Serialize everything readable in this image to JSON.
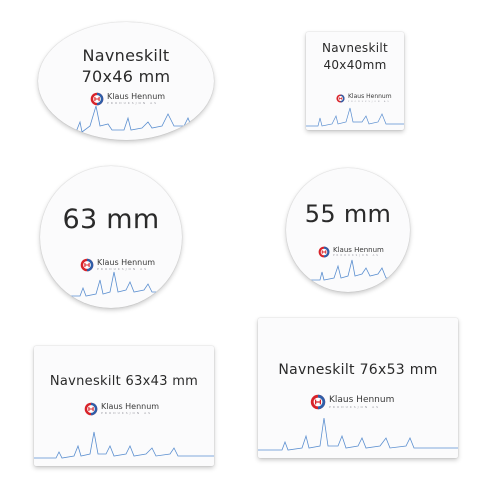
{
  "badges": [
    {
      "shape": "oval",
      "line1": "Navneskilt",
      "line2": "70x46 mm",
      "brand": "Klaus Hennum",
      "sub": "PRODUKSJON AS"
    },
    {
      "shape": "rect",
      "line1": "Navneskilt",
      "line2": "40x40mm",
      "brand": "Klaus Hennum",
      "sub": "PRODUKSJON AS"
    },
    {
      "shape": "circle",
      "line1": "63 mm",
      "brand": "Klaus Hennum",
      "sub": "PRODUKSJON AS"
    },
    {
      "shape": "circle",
      "line1": "55 mm",
      "brand": "Klaus Hennum",
      "sub": "PRODUKSJON AS"
    },
    {
      "shape": "rect",
      "line1": "Navneskilt 63x43 mm",
      "brand": "Klaus Hennum",
      "sub": "PRODUKSJON AS"
    },
    {
      "shape": "rect",
      "line1": "Navneskilt 76x53 mm",
      "brand": "Klaus Hennum",
      "sub": "PRODUKSJON AS"
    }
  ],
  "colors": {
    "logo_red": "#d8232a",
    "logo_blue": "#2f5ea8",
    "skyline": "#5b8fd0",
    "text": "#2a2a2a"
  }
}
